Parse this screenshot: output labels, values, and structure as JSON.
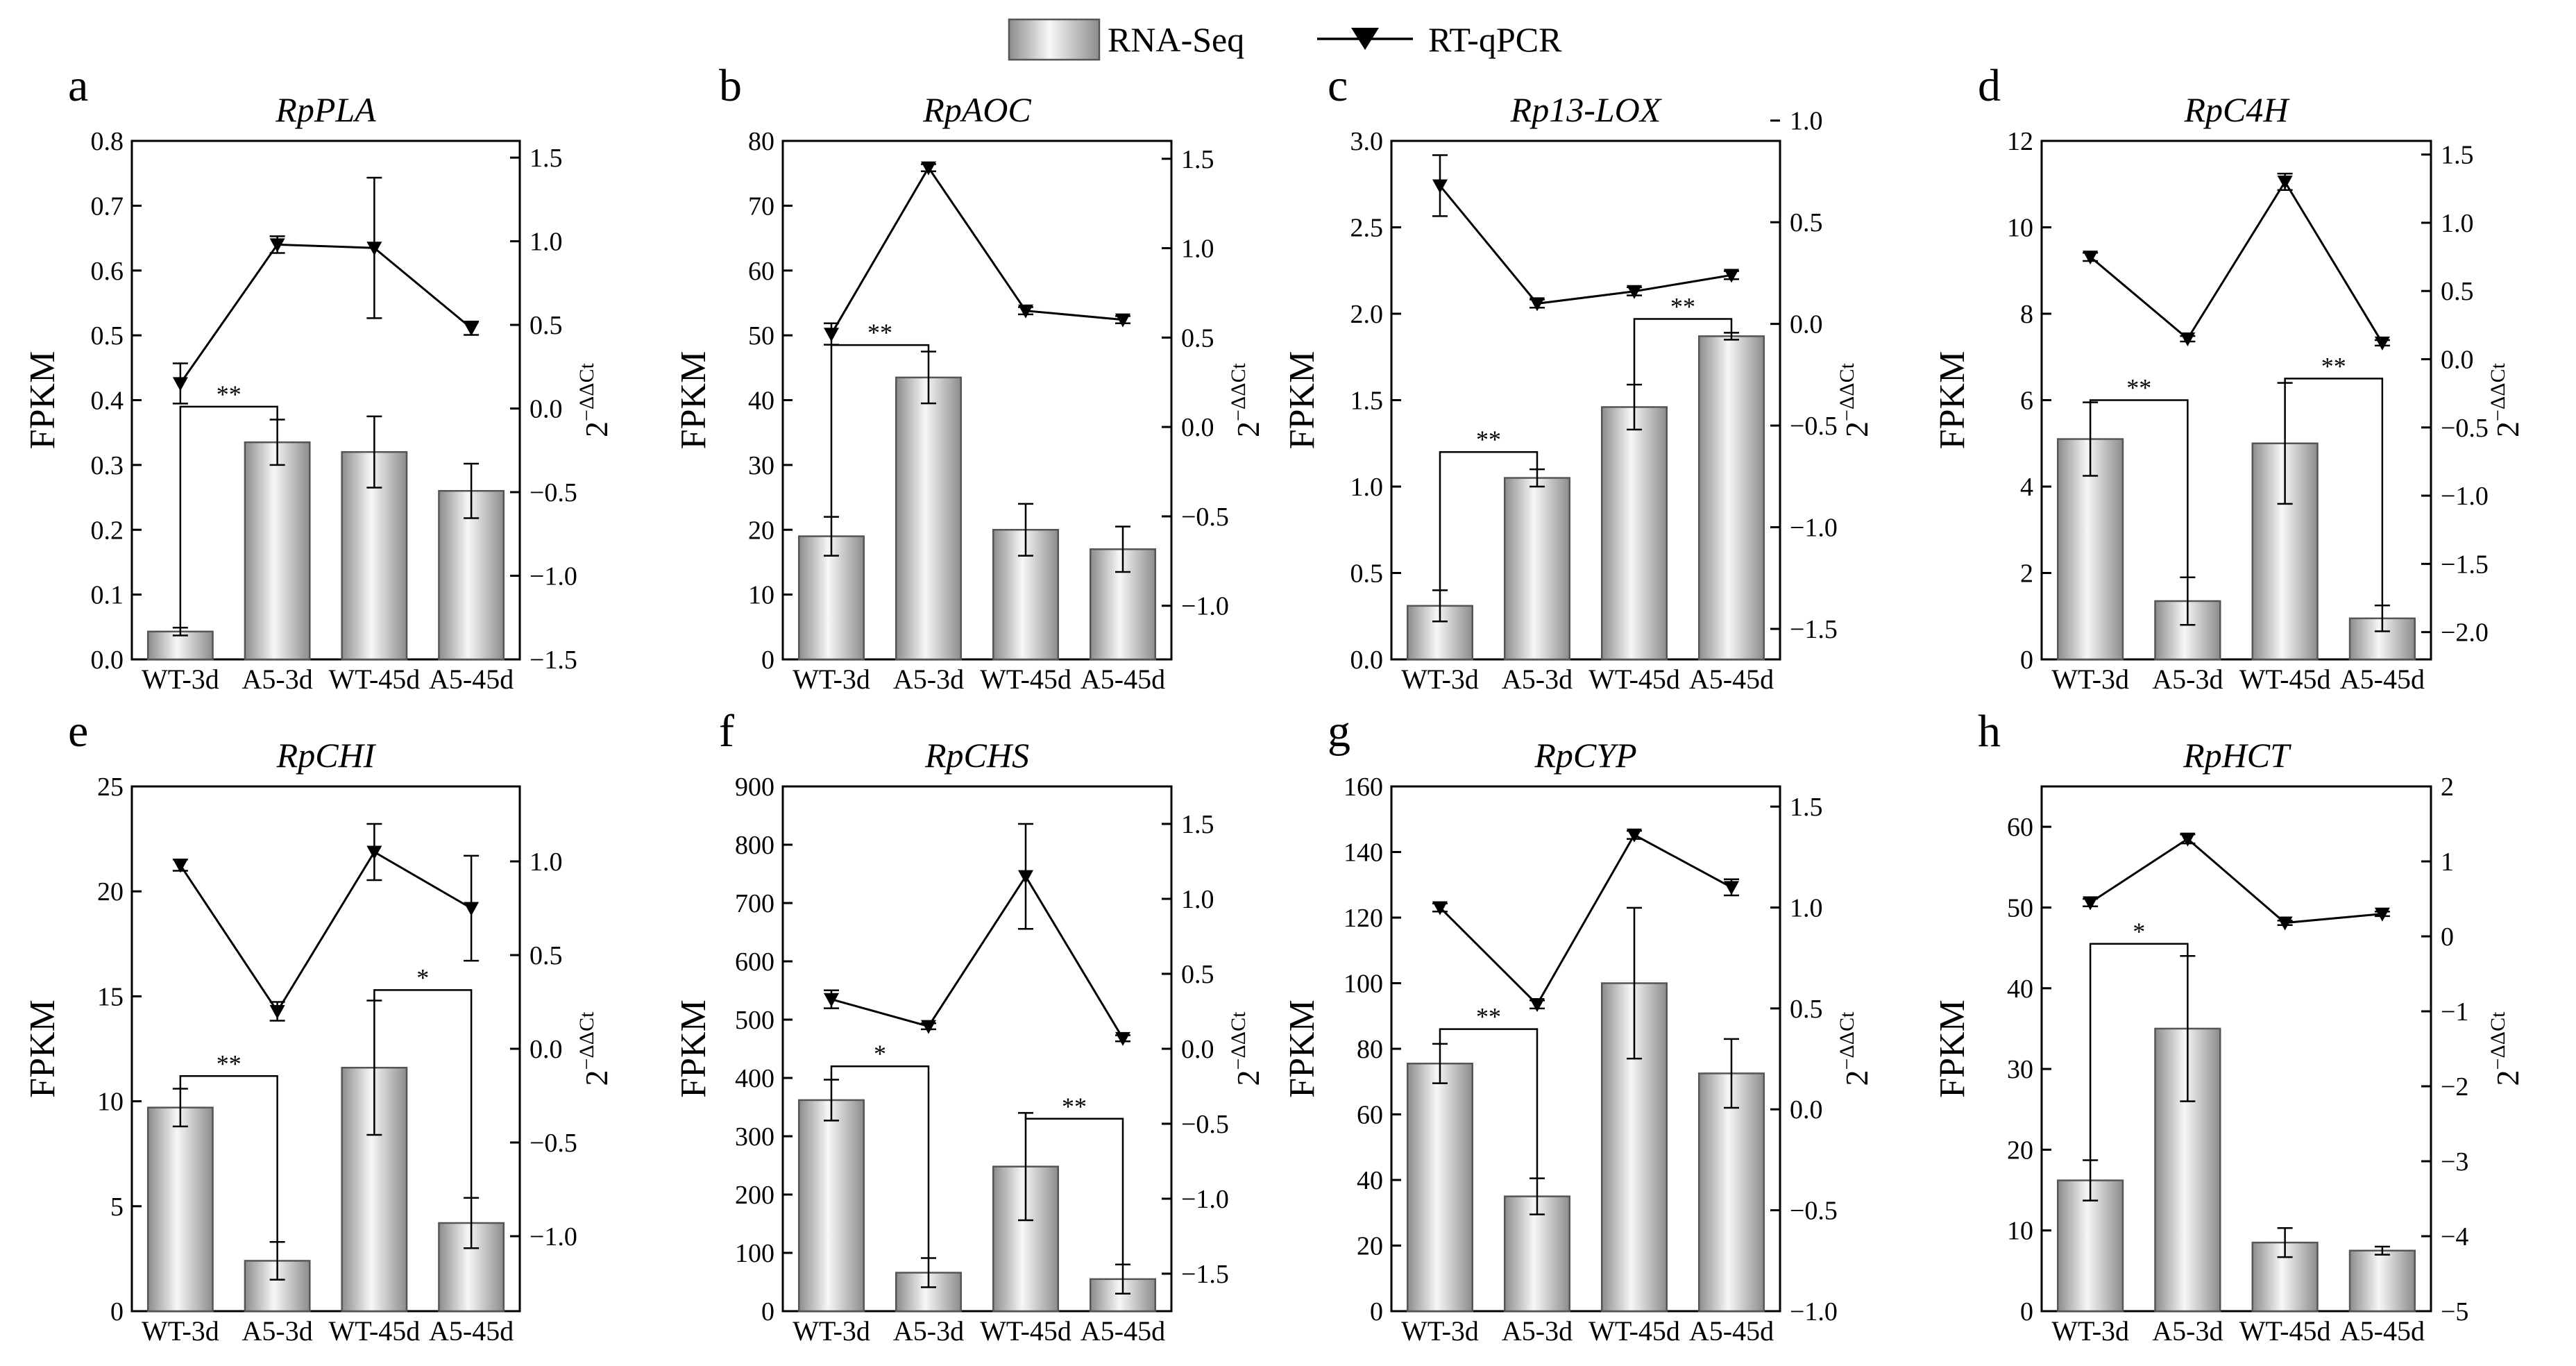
{
  "legend": {
    "bar_label": "RNA-Seq",
    "line_label": "RT-qPCR"
  },
  "categories": [
    "WT-3d",
    "A5-3d",
    "WT-45d",
    "A5-45d"
  ],
  "y_label": "FPKM",
  "y2_label_base": "2",
  "y2_label_sup": "−ΔΔCt",
  "colors": {
    "bar_light": "#f7f7f7",
    "bar_mid": "#dadada",
    "bar_dark": "#8c8c8c",
    "line": "#000000"
  },
  "chart_data": [
    {
      "letter": "a",
      "title": "RpPLA",
      "type": "bar",
      "ylim": [
        0,
        0.8
      ],
      "yticks": [
        0.0,
        0.1,
        0.2,
        0.3,
        0.4,
        0.5,
        0.6,
        0.7,
        0.8
      ],
      "ytick_labels": [
        "0.0",
        "0.1",
        "0.2",
        "0.3",
        "0.4",
        "0.5",
        "0.6",
        "0.7",
        "0.8"
      ],
      "y2lim": [
        -1.5,
        1.6
      ],
      "y2ticks": [
        -1.5,
        -1.0,
        -0.5,
        0.0,
        0.5,
        1.0,
        1.5
      ],
      "y2tick_labels": [
        "−1.5",
        "−1.0",
        "−0.5",
        "0.0",
        "0.5",
        "1.0",
        "1.5"
      ],
      "series": [
        {
          "name": "RNA-Seq",
          "values": [
            0.043,
            0.335,
            0.32,
            0.26
          ],
          "errors": [
            0.006,
            0.035,
            0.055,
            0.042
          ]
        },
        {
          "name": "RT-qPCR",
          "values": [
            0.15,
            0.98,
            0.96,
            0.48
          ],
          "errors": [
            0.12,
            0.05,
            0.42,
            0.04
          ]
        }
      ],
      "significance": [
        {
          "from": 0,
          "to": 1,
          "label": "**",
          "level": 0.39
        }
      ]
    },
    {
      "letter": "b",
      "title": "RpAOC",
      "type": "bar",
      "ylim": [
        0,
        80
      ],
      "yticks": [
        0,
        10,
        20,
        30,
        40,
        50,
        60,
        70,
        80
      ],
      "ytick_labels": [
        "0",
        "10",
        "20",
        "30",
        "40",
        "50",
        "60",
        "70",
        "80"
      ],
      "y2lim": [
        -1.3,
        1.6
      ],
      "y2ticks": [
        -1.0,
        -0.5,
        0.0,
        0.5,
        1.0,
        1.5
      ],
      "y2tick_labels": [
        "−1.0",
        "−0.5",
        "0.0",
        "0.5",
        "1.0",
        "1.5"
      ],
      "series": [
        {
          "name": "RNA-Seq",
          "values": [
            19,
            43.5,
            20,
            17
          ],
          "errors": [
            3,
            4,
            4,
            3.5
          ]
        },
        {
          "name": "RT-qPCR",
          "values": [
            0.52,
            1.45,
            0.65,
            0.6
          ],
          "errors": [
            0.06,
            0.02,
            0.02,
            0.02
          ]
        }
      ],
      "significance": [
        {
          "from": 0,
          "to": 1,
          "label": "**",
          "level": 48.5
        }
      ]
    },
    {
      "letter": "c",
      "title": "Rp13-LOX",
      "type": "bar",
      "ylim": [
        0,
        3.0
      ],
      "yticks": [
        0.0,
        0.5,
        1.0,
        1.5,
        2.0,
        2.5,
        3.0
      ],
      "ytick_labels": [
        "0.0",
        "0.5",
        "1.0",
        "1.5",
        "2.0",
        "2.5",
        "3.0"
      ],
      "y2lim": [
        -1.65,
        0.9
      ],
      "y2ticks": [
        -1.5,
        -1.0,
        -0.5,
        0.0,
        0.5,
        1.0
      ],
      "y2tick_labels": [
        "−1.5",
        "−1.0",
        "−0.5",
        "0.0",
        "0.5",
        "1.0"
      ],
      "series": [
        {
          "name": "RNA-Seq",
          "values": [
            0.31,
            1.05,
            1.46,
            1.87
          ],
          "errors": [
            0.09,
            0.05,
            0.13,
            0.02
          ]
        },
        {
          "name": "RT-qPCR",
          "values": [
            0.68,
            0.1,
            0.16,
            0.24
          ],
          "errors": [
            0.15,
            0.02,
            0.02,
            0.02
          ]
        }
      ],
      "significance": [
        {
          "from": 0,
          "to": 1,
          "label": "**",
          "level": 1.2
        },
        {
          "from": 2,
          "to": 3,
          "label": "**",
          "level": 1.97
        }
      ]
    },
    {
      "letter": "d",
      "title": "RpC4H",
      "type": "bar",
      "ylim": [
        0,
        12
      ],
      "yticks": [
        0,
        2,
        4,
        6,
        8,
        10,
        12
      ],
      "ytick_labels": [
        "0",
        "2",
        "4",
        "6",
        "8",
        "10",
        "12"
      ],
      "y2lim": [
        -2.2,
        1.6
      ],
      "y2ticks": [
        -2.0,
        -1.5,
        -1.0,
        -0.5,
        0.0,
        0.5,
        1.0,
        1.5
      ],
      "y2tick_labels": [
        "−2.0",
        "−1.5",
        "−1.0",
        "−0.5",
        "0.0",
        "0.5",
        "1.0",
        "1.5"
      ],
      "series": [
        {
          "name": "RNA-Seq",
          "values": [
            5.1,
            1.35,
            5.0,
            0.95
          ],
          "errors": [
            0.85,
            0.55,
            1.4,
            0.3
          ]
        },
        {
          "name": "RT-qPCR",
          "values": [
            0.75,
            0.15,
            1.3,
            0.12
          ],
          "errors": [
            0.03,
            0.02,
            0.06,
            0.02
          ]
        }
      ],
      "significance": [
        {
          "from": 0,
          "to": 1,
          "label": "**",
          "level": 6.0
        },
        {
          "from": 2,
          "to": 3,
          "label": "**",
          "level": 6.5
        }
      ]
    },
    {
      "letter": "e",
      "title": "RpCHI",
      "type": "bar",
      "ylim": [
        0,
        25
      ],
      "yticks": [
        0,
        5,
        10,
        15,
        20,
        25
      ],
      "ytick_labels": [
        "0",
        "5",
        "10",
        "15",
        "20",
        "25"
      ],
      "y2lim": [
        -1.4,
        1.4
      ],
      "y2ticks": [
        -1.0,
        -0.5,
        0.0,
        0.5,
        1.0
      ],
      "y2tick_labels": [
        "−1.0",
        "−0.5",
        "0.0",
        "0.5",
        "1.0"
      ],
      "series": [
        {
          "name": "RNA-Seq",
          "values": [
            9.7,
            2.4,
            11.6,
            4.2
          ],
          "errors": [
            0.9,
            0.9,
            3.2,
            1.2
          ]
        },
        {
          "name": "RT-qPCR",
          "values": [
            0.98,
            0.2,
            1.05,
            0.75
          ],
          "errors": [
            0.03,
            0.05,
            0.15,
            0.28
          ]
        }
      ],
      "significance": [
        {
          "from": 0,
          "to": 1,
          "label": "**",
          "level": 11.2
        },
        {
          "from": 2,
          "to": 3,
          "label": "*",
          "level": 15.3
        }
      ]
    },
    {
      "letter": "f",
      "title": "RpCHS",
      "type": "bar",
      "ylim": [
        0,
        900
      ],
      "yticks": [
        0,
        100,
        200,
        300,
        400,
        500,
        600,
        700,
        800,
        900
      ],
      "ytick_labels": [
        "0",
        "100",
        "200",
        "300",
        "400",
        "500",
        "600",
        "700",
        "800",
        "900"
      ],
      "y2lim": [
        -1.75,
        1.75
      ],
      "y2ticks": [
        -1.5,
        -1.0,
        -0.5,
        0.0,
        0.5,
        1.0,
        1.5
      ],
      "y2tick_labels": [
        "−1.5",
        "−1.0",
        "−0.5",
        "0.0",
        "0.5",
        "1.0",
        "1.5"
      ],
      "series": [
        {
          "name": "RNA-Seq",
          "values": [
            362,
            66,
            248,
            55
          ],
          "errors": [
            35,
            25,
            92,
            25
          ]
        },
        {
          "name": "RT-qPCR",
          "values": [
            0.33,
            0.15,
            1.15,
            0.07
          ],
          "errors": [
            0.06,
            0.02,
            0.35,
            0.02
          ]
        }
      ],
      "significance": [
        {
          "from": 0,
          "to": 1,
          "label": "*",
          "level": 420
        },
        {
          "from": 2,
          "to": 3,
          "label": "**",
          "level": 330
        }
      ]
    },
    {
      "letter": "g",
      "title": "RpCYP",
      "type": "bar",
      "ylim": [
        0,
        160
      ],
      "yticks": [
        0,
        20,
        40,
        60,
        80,
        100,
        120,
        140,
        160
      ],
      "ytick_labels": [
        "0",
        "20",
        "40",
        "60",
        "80",
        "100",
        "120",
        "140",
        "160"
      ],
      "y2lim": [
        -1.0,
        1.6
      ],
      "y2ticks": [
        -1.0,
        -0.5,
        0.0,
        0.5,
        1.0,
        1.5
      ],
      "y2tick_labels": [
        "−1.0",
        "−0.5",
        "0.0",
        "0.5",
        "1.0",
        "1.5"
      ],
      "series": [
        {
          "name": "RNA-Seq",
          "values": [
            75.5,
            35,
            100,
            72.5
          ],
          "errors": [
            6,
            5.5,
            23,
            10.5
          ]
        },
        {
          "name": "RT-qPCR",
          "values": [
            1.0,
            0.52,
            1.36,
            1.1
          ],
          "errors": [
            0.02,
            0.02,
            0.02,
            0.04
          ]
        }
      ],
      "significance": [
        {
          "from": 0,
          "to": 1,
          "label": "**",
          "level": 86
        }
      ]
    },
    {
      "letter": "h",
      "title": "RpHCT",
      "type": "bar",
      "ylim": [
        0,
        65
      ],
      "yticks": [
        0,
        10,
        20,
        30,
        40,
        50,
        60
      ],
      "ytick_labels": [
        "0",
        "10",
        "20",
        "30",
        "40",
        "50",
        "60"
      ],
      "y2lim": [
        -5,
        2
      ],
      "y2ticks": [
        -5,
        -4,
        -3,
        -2,
        -1,
        0,
        1,
        2
      ],
      "y2tick_labels": [
        "−5",
        "−4",
        "−3",
        "−2",
        "−1",
        "0",
        "1",
        "2"
      ],
      "series": [
        {
          "name": "RNA-Seq",
          "values": [
            16.2,
            35,
            8.5,
            7.5
          ],
          "errors": [
            2.5,
            9,
            1.8,
            0.5
          ]
        },
        {
          "name": "RT-qPCR",
          "values": [
            0.45,
            1.3,
            0.18,
            0.3
          ],
          "errors": [
            0.05,
            0.06,
            0.03,
            0.03
          ]
        }
      ],
      "significance": [
        {
          "from": 0,
          "to": 1,
          "label": "*",
          "level": 45.5
        }
      ]
    }
  ]
}
